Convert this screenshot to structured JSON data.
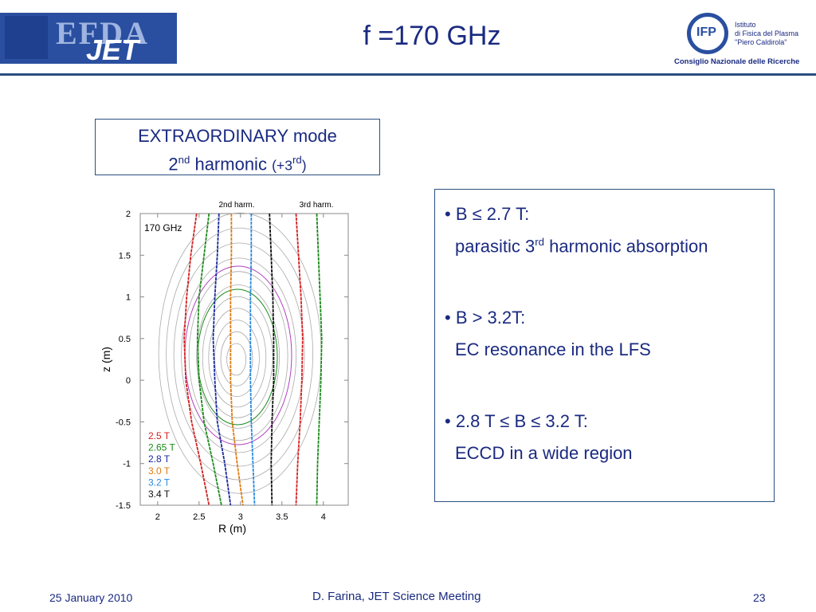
{
  "header": {
    "title": "f =170 GHz",
    "left_logo": {
      "line1": "EFDA",
      "line2": "JET"
    },
    "right_logo": {
      "mark": "IFP",
      "lines": [
        "Istituto",
        "di Fisica del Plasma",
        "\"Piero Caldirola\""
      ],
      "org": "Consiglio Nazionale delle Ricerche"
    }
  },
  "mode_box": {
    "line1": "EXTRAORDINARY mode",
    "line2": [
      {
        "text": "2"
      },
      {
        "sup": "nd"
      },
      {
        "text": " harmonic "
      },
      {
        "small": "(+3"
      },
      {
        "sup": "rd"
      },
      {
        "small": ")"
      }
    ]
  },
  "plot": {
    "xlabel": "R (m)",
    "ylabel": "z (m)",
    "annotation": "170 GHz",
    "harmonic_labels": [
      "2nd harm.",
      "3rd harm."
    ],
    "xlim": [
      1.79,
      4.3
    ],
    "ylim": [
      -1.5,
      2
    ],
    "xticks": [
      2,
      2.5,
      3,
      3.5,
      4
    ],
    "yticks": [
      -1.5,
      -1,
      -0.5,
      0,
      0.5,
      1,
      1.5,
      2
    ],
    "z": [
      2,
      1.5,
      1,
      0.5,
      0,
      -0.5,
      -1,
      -1.5
    ],
    "series": [
      {
        "name": "2.5 T",
        "color": "#d42020",
        "values": [
          2.47,
          2.4,
          2.35,
          2.32,
          2.34,
          2.41,
          2.52,
          2.62
        ]
      },
      {
        "name": "2.65 T",
        "color": "#1a8a1a",
        "values": [
          2.62,
          2.56,
          2.5,
          2.48,
          2.5,
          2.56,
          2.67,
          2.77
        ]
      },
      {
        "name": "2.8 T",
        "color": "#1a2aa0",
        "values": [
          2.74,
          2.72,
          2.69,
          2.67,
          2.69,
          2.72,
          2.81,
          2.88
        ]
      },
      {
        "name": "3.0 T",
        "color": "#e07a10",
        "values": [
          2.89,
          2.89,
          2.88,
          2.88,
          2.88,
          2.9,
          2.96,
          3.03
        ]
      },
      {
        "name": "3.2 T",
        "color": "#2a8ae0",
        "values": [
          3.13,
          3.13,
          3.12,
          3.12,
          3.12,
          3.13,
          3.15,
          3.17
        ]
      },
      {
        "name": "3.4 T",
        "color": "#111111",
        "values": [
          3.35,
          3.37,
          3.39,
          3.4,
          3.4,
          3.38,
          3.37,
          3.38
        ]
      }
    ],
    "third_harmonic": [
      {
        "color": "#d42020",
        "values": [
          3.67,
          3.7,
          3.73,
          3.75,
          3.74,
          3.72,
          3.69,
          3.67
        ]
      },
      {
        "color": "#1a8a1a",
        "values": [
          3.92,
          3.94,
          3.96,
          3.98,
          3.97,
          3.95,
          3.93,
          3.92
        ]
      }
    ]
  },
  "bullets": [
    {
      "head": "• B ≤ 2.7 T:",
      "body": [
        {
          "text": "parasitic 3"
        },
        {
          "sup": "rd"
        },
        {
          "text": " harmonic absorption"
        }
      ]
    },
    {
      "head": "• B > 3.2T:",
      "body": [
        {
          "text": "EC resonance in the LFS"
        }
      ]
    },
    {
      "head": "• 2.8 T ≤ B ≤ 3.2 T:",
      "body": [
        {
          "text": "ECCD in a wide region"
        }
      ]
    }
  ],
  "footer": {
    "date": "25 January 2010",
    "center": "D. Farina, JET Science Meeting",
    "page": "23"
  }
}
